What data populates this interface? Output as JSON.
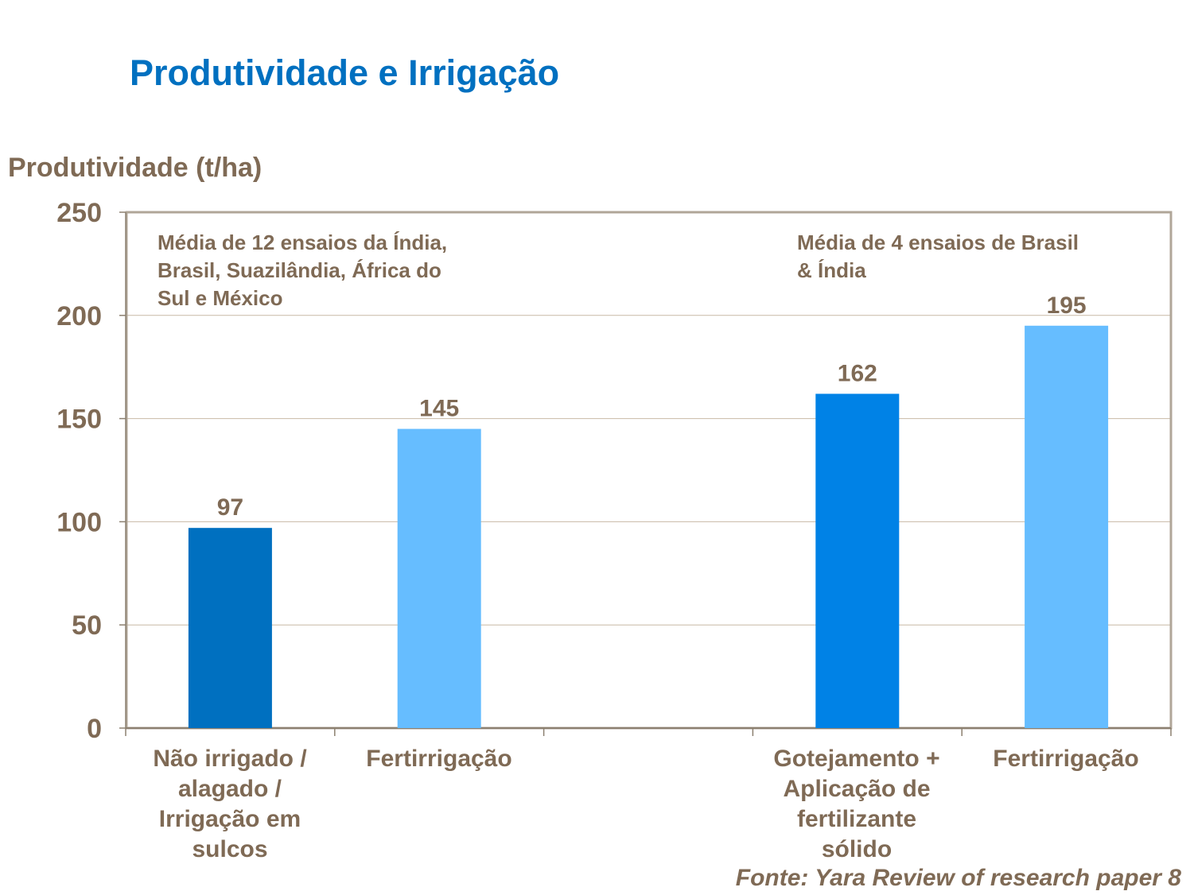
{
  "title": "Produtividade e Irrigação",
  "chart_data": {
    "type": "bar",
    "title": "",
    "ylabel": "Produtividade (t/ha)",
    "xlabel": "",
    "ylim": [
      0,
      250
    ],
    "yticks": [
      "0",
      "50",
      "100",
      "150",
      "200",
      "250"
    ],
    "grid": true,
    "categories": [
      "Não irrigado /\nalagado /\nIrrigação em\nsulcos",
      "Fertirrigação",
      "",
      "Gotejamento +\nAplicação de\nfertilizante\nsólido",
      "Fertirrigação"
    ],
    "values": [
      97,
      145,
      null,
      162,
      195
    ],
    "data_labels": [
      "97",
      "145",
      "",
      "162",
      "195"
    ],
    "colors": [
      "#0070C0",
      "#66BDFF",
      null,
      "#0082E6",
      "#66BDFF"
    ],
    "annotations": [
      "Média de 12 ensaios da Índia,\nBrasil, Suazilândia, África do\nSul e México",
      "Média de 4 ensaios de Brasil\n& Índia"
    ]
  },
  "source": "Fonte: Yara Review of research paper 8"
}
